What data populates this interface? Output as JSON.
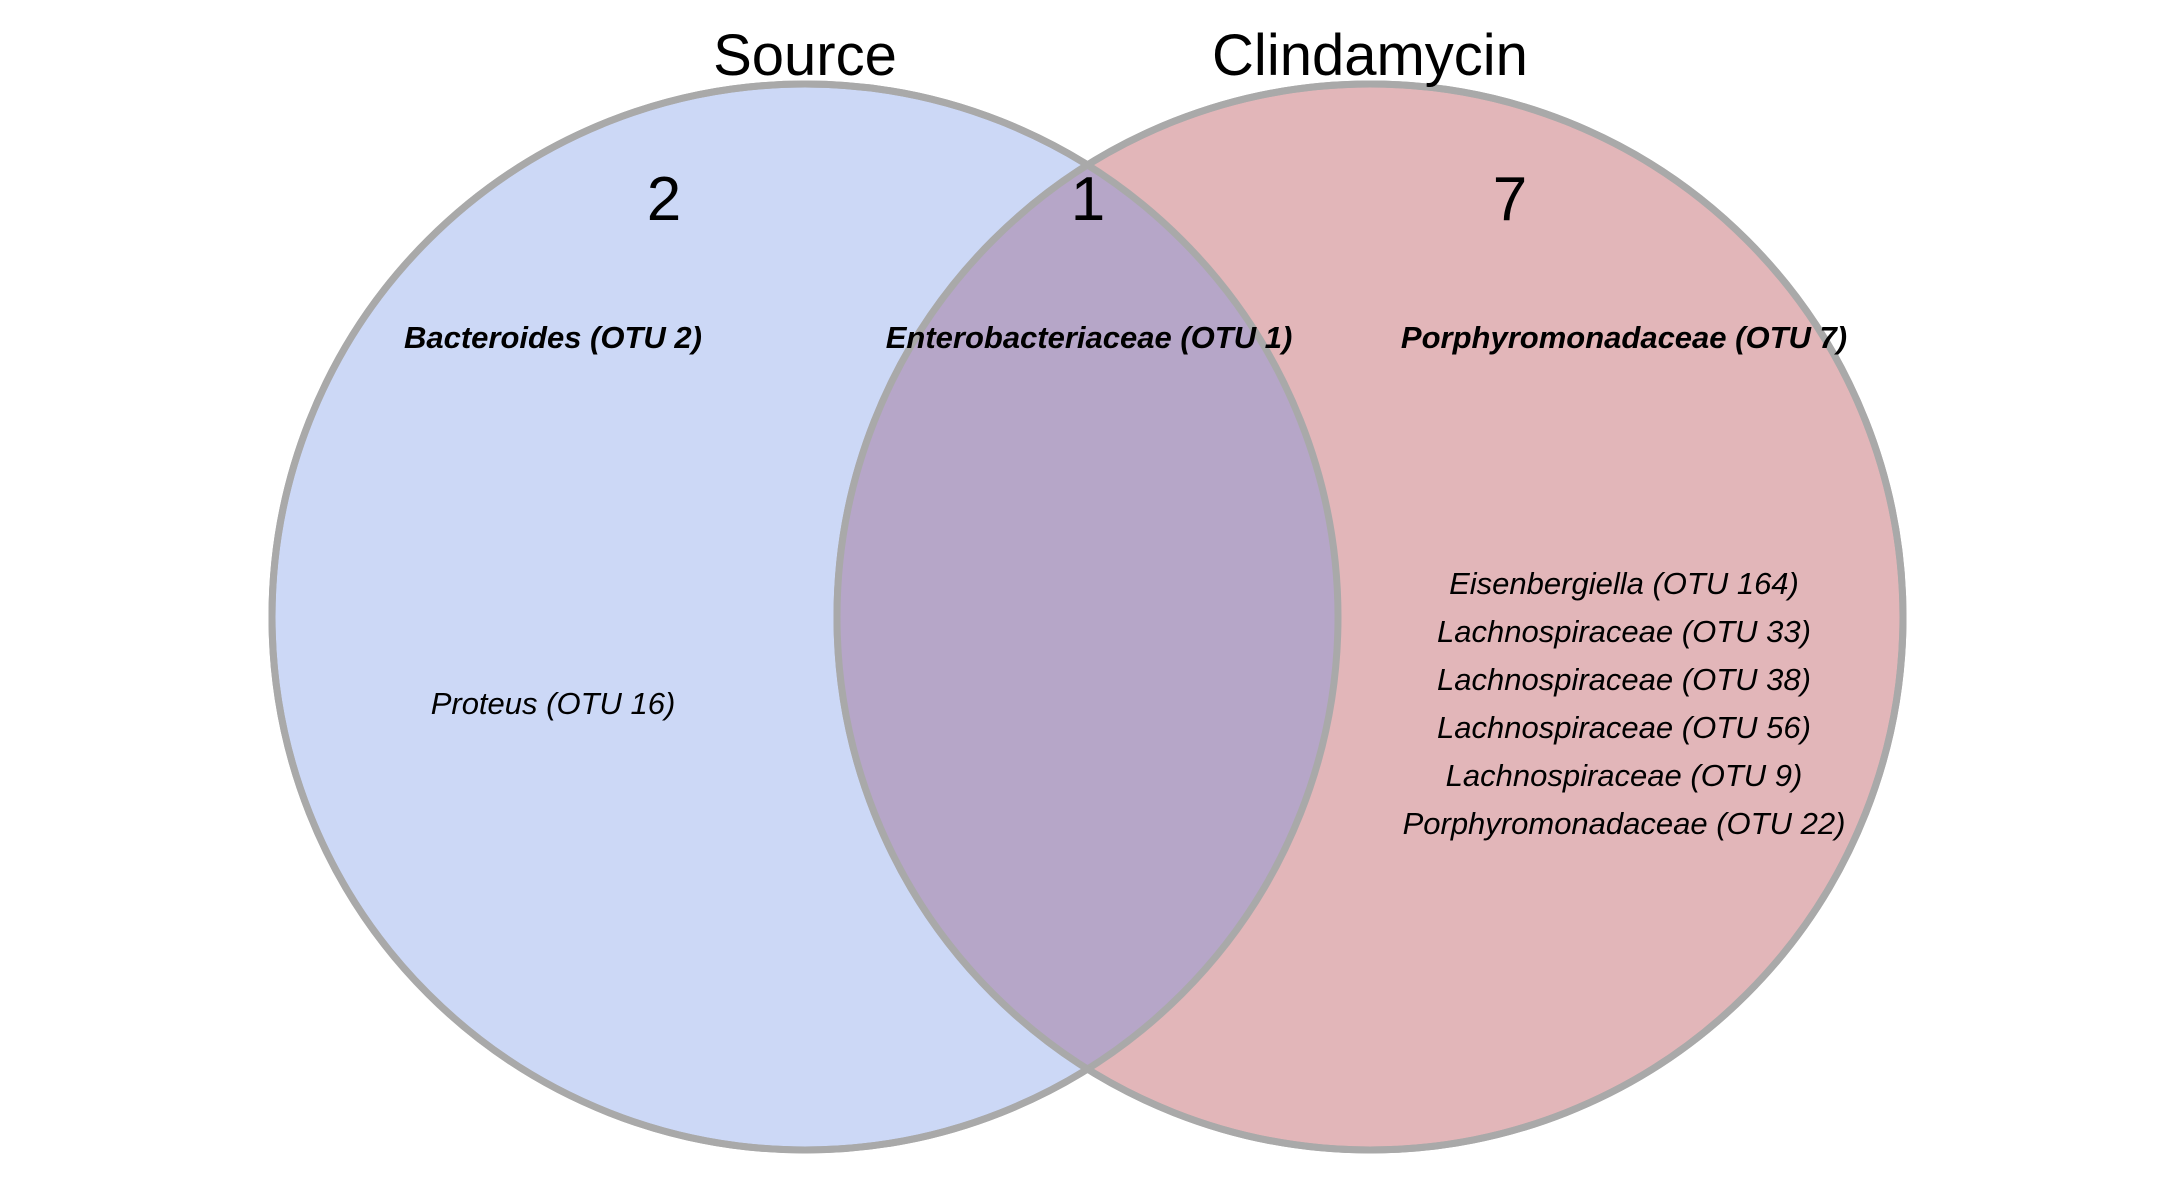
{
  "venn": {
    "sets": [
      {
        "title": "Source",
        "fill": "#ccd8f6",
        "stroke": "#a9a9a9"
      },
      {
        "title": "Clindamycin",
        "fill": "#e2b6b9",
        "stroke": "#a9a9a9"
      }
    ],
    "overlap_fill": "#b6a6c8",
    "regions": {
      "source_only": {
        "count": "2",
        "members": [
          {
            "label": "Bacteroides (OTU 2)",
            "emphasis": true
          },
          {
            "label": "Proteus (OTU 16)",
            "emphasis": false
          }
        ]
      },
      "shared": {
        "count": "1",
        "members": [
          {
            "label": "Enterobacteriaceae (OTU 1)",
            "emphasis": true
          }
        ]
      },
      "clindamycin_only": {
        "count": "7",
        "members": [
          {
            "label": "Porphyromonadaceae (OTU 7)",
            "emphasis": true
          },
          {
            "label": "Eisenbergiella (OTU 164)",
            "emphasis": false
          },
          {
            "label": "Lachnospiraceae (OTU 33)",
            "emphasis": false
          },
          {
            "label": "Lachnospiraceae (OTU 38)",
            "emphasis": false
          },
          {
            "label": "Lachnospiraceae (OTU 56)",
            "emphasis": false
          },
          {
            "label": "Lachnospiraceae (OTU 9)",
            "emphasis": false
          },
          {
            "label": "Porphyromonadaceae (OTU 22)",
            "emphasis": false
          }
        ]
      }
    }
  }
}
